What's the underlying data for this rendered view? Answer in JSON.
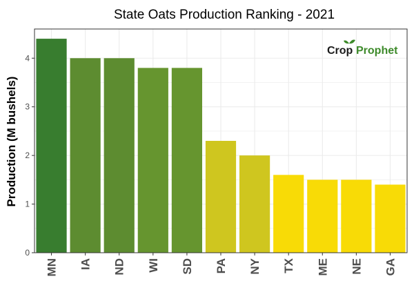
{
  "chart_data": {
    "type": "bar",
    "title": "State Oats Production Ranking - 2021",
    "xlabel": "",
    "ylabel": "Production (M bushels)",
    "categories": [
      "MN",
      "IA",
      "ND",
      "WI",
      "SD",
      "PA",
      "NY",
      "TX",
      "ME",
      "NE",
      "GA"
    ],
    "values": [
      4.4,
      4.0,
      4.0,
      3.8,
      3.8,
      2.3,
      2.0,
      1.6,
      1.5,
      1.5,
      1.4
    ],
    "colors": [
      "#387d2f",
      "#5d8c30",
      "#5d8c30",
      "#66952f",
      "#66952f",
      "#cfc61f",
      "#cfc61f",
      "#f8db06",
      "#f8db06",
      "#f8db06",
      "#f8db06"
    ],
    "ylim": [
      0,
      4.6
    ],
    "yticks": [
      0,
      1,
      2,
      3,
      4
    ],
    "grid": true,
    "legend": "none"
  },
  "branding": {
    "logo_part1": "Crop",
    "logo_part2": "Prophet",
    "logo_color": "#3d8a2a"
  },
  "theme": {
    "panel_background": "#ffffff",
    "grid_color": "#ebebeb",
    "axis_color": "#333333"
  }
}
